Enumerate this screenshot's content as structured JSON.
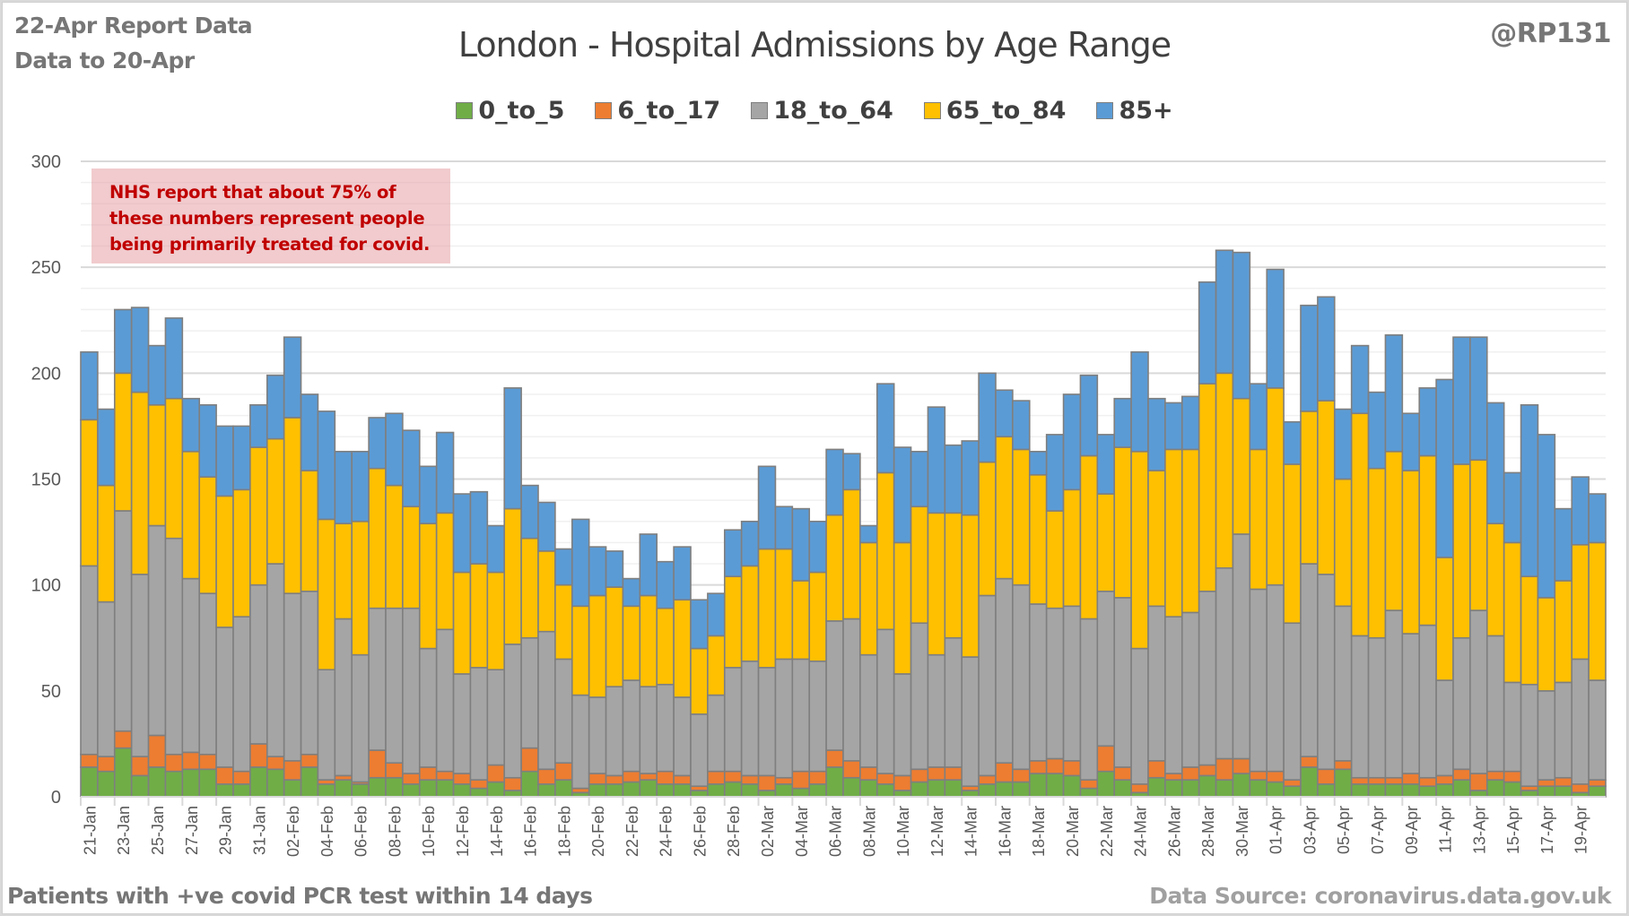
{
  "header": {
    "report_line1": "22-Apr Report Data",
    "report_line2": "Data to 20-Apr",
    "handle": "@RP131"
  },
  "note": "NHS report that about 75% of these numbers represent people being primarily treated for covid.",
  "footer": {
    "left": "Patients with  +ve covid PCR test within 14 days",
    "right": "Data Source: coronavirus.data.gov.uk"
  },
  "chart_data": {
    "type": "bar",
    "stacked": true,
    "title": "London - Hospital Admissions by Age Range",
    "xlabel": "",
    "ylabel": "",
    "ylim": [
      0,
      300
    ],
    "yticks": [
      0,
      50,
      100,
      150,
      200,
      250,
      300
    ],
    "grid": true,
    "legend_position": "top-center",
    "colors": {
      "0_to_5": "#70ad47",
      "6_to_17": "#ed7d31",
      "18_to_64": "#a5a5a5",
      "65_to_84": "#ffc000",
      "85+": "#5b9bd5"
    },
    "categories": [
      "21-Jan",
      "22-Jan",
      "23-Jan",
      "24-Jan",
      "25-Jan",
      "26-Jan",
      "27-Jan",
      "28-Jan",
      "29-Jan",
      "30-Jan",
      "31-Jan",
      "01-Feb",
      "02-Feb",
      "03-Feb",
      "04-Feb",
      "05-Feb",
      "06-Feb",
      "07-Feb",
      "08-Feb",
      "09-Feb",
      "10-Feb",
      "11-Feb",
      "12-Feb",
      "13-Feb",
      "14-Feb",
      "15-Feb",
      "16-Feb",
      "17-Feb",
      "18-Feb",
      "19-Feb",
      "20-Feb",
      "21-Feb",
      "22-Feb",
      "23-Feb",
      "24-Feb",
      "25-Feb",
      "26-Feb",
      "27-Feb",
      "28-Feb",
      "01-Mar",
      "02-Mar",
      "03-Mar",
      "04-Mar",
      "05-Mar",
      "06-Mar",
      "07-Mar",
      "08-Mar",
      "09-Mar",
      "10-Mar",
      "11-Mar",
      "12-Mar",
      "13-Mar",
      "14-Mar",
      "15-Mar",
      "16-Mar",
      "17-Mar",
      "18-Mar",
      "19-Mar",
      "20-Mar",
      "21-Mar",
      "22-Mar",
      "23-Mar",
      "24-Mar",
      "25-Mar",
      "26-Mar",
      "27-Mar",
      "28-Mar",
      "29-Mar",
      "30-Mar",
      "31-Mar",
      "01-Apr",
      "02-Apr",
      "03-Apr",
      "04-Apr",
      "05-Apr",
      "06-Apr",
      "07-Apr",
      "08-Apr",
      "09-Apr",
      "10-Apr",
      "11-Apr",
      "12-Apr",
      "13-Apr",
      "14-Apr",
      "15-Apr",
      "16-Apr",
      "17-Apr",
      "18-Apr",
      "19-Apr",
      "20-Apr"
    ],
    "tick_labels": [
      "21-Jan",
      "23-Jan",
      "25-Jan",
      "27-Jan",
      "29-Jan",
      "31-Jan",
      "02-Feb",
      "04-Feb",
      "06-Feb",
      "08-Feb",
      "10-Feb",
      "12-Feb",
      "14-Feb",
      "16-Feb",
      "18-Feb",
      "20-Feb",
      "22-Feb",
      "24-Feb",
      "26-Feb",
      "28-Feb",
      "02-Mar",
      "04-Mar",
      "06-Mar",
      "08-Mar",
      "10-Mar",
      "12-Mar",
      "14-Mar",
      "16-Mar",
      "18-Mar",
      "20-Mar",
      "22-Mar",
      "24-Mar",
      "26-Mar",
      "28-Mar",
      "30-Mar",
      "01-Apr",
      "03-Apr",
      "05-Apr",
      "07-Apr",
      "09-Apr",
      "11-Apr",
      "13-Apr",
      "15-Apr",
      "17-Apr",
      "19-Apr"
    ],
    "series": [
      {
        "name": "0_to_5",
        "values": [
          14,
          12,
          23,
          10,
          14,
          12,
          13,
          13,
          6,
          6,
          14,
          13,
          8,
          14,
          6,
          8,
          6,
          9,
          9,
          6,
          8,
          8,
          6,
          4,
          7,
          3,
          12,
          6,
          8,
          2,
          6,
          6,
          7,
          8,
          6,
          6,
          3,
          6,
          7,
          6,
          3,
          6,
          4,
          6,
          14,
          9,
          8,
          6,
          3,
          7,
          8,
          8,
          3,
          6,
          7,
          7,
          11,
          11,
          10,
          4,
          12,
          8,
          2,
          9,
          8,
          8,
          10,
          8,
          11,
          8,
          7,
          5,
          14,
          6,
          13,
          6,
          6,
          6,
          6,
          5,
          6,
          8,
          3,
          8,
          7,
          3,
          5,
          5,
          2,
          5
        ]
      },
      {
        "name": "6_to_17",
        "values": [
          6,
          7,
          8,
          9,
          15,
          8,
          8,
          7,
          8,
          6,
          11,
          6,
          9,
          6,
          2,
          2,
          1,
          13,
          7,
          5,
          6,
          4,
          5,
          4,
          8,
          6,
          11,
          7,
          8,
          2,
          5,
          4,
          5,
          3,
          6,
          4,
          2,
          6,
          5,
          4,
          7,
          3,
          8,
          6,
          8,
          8,
          6,
          5,
          7,
          6,
          6,
          6,
          2,
          4,
          9,
          6,
          6,
          7,
          7,
          4,
          12,
          6,
          4,
          8,
          3,
          6,
          5,
          10,
          7,
          4,
          5,
          3,
          5,
          7,
          4,
          3,
          3,
          3,
          5,
          4,
          4,
          5,
          8,
          4,
          5,
          2,
          3,
          4,
          4,
          3
        ]
      },
      {
        "name": "18_to_64",
        "values": [
          89,
          73,
          104,
          86,
          99,
          102,
          82,
          76,
          66,
          73,
          75,
          91,
          79,
          77,
          52,
          74,
          60,
          67,
          73,
          78,
          56,
          67,
          47,
          53,
          45,
          63,
          52,
          65,
          49,
          44,
          36,
          42,
          43,
          41,
          41,
          37,
          34,
          36,
          49,
          54,
          51,
          56,
          53,
          52,
          61,
          67,
          53,
          68,
          48,
          69,
          53,
          61,
          61,
          85,
          87,
          87,
          74,
          71,
          73,
          76,
          73,
          80,
          64,
          73,
          74,
          73,
          82,
          90,
          106,
          86,
          88,
          74,
          91,
          92,
          73,
          67,
          66,
          79,
          66,
          72,
          45,
          62,
          77,
          64,
          42,
          48,
          42,
          45,
          59,
          47
        ]
      },
      {
        "name": "65_to_84",
        "values": [
          69,
          55,
          65,
          86,
          57,
          66,
          60,
          55,
          62,
          60,
          65,
          59,
          83,
          57,
          71,
          45,
          63,
          66,
          58,
          48,
          59,
          55,
          48,
          49,
          46,
          64,
          47,
          38,
          35,
          42,
          48,
          47,
          35,
          43,
          36,
          46,
          31,
          28,
          43,
          45,
          56,
          52,
          37,
          42,
          50,
          61,
          53,
          74,
          62,
          55,
          67,
          59,
          67,
          63,
          67,
          64,
          61,
          46,
          55,
          77,
          46,
          71,
          93,
          64,
          79,
          77,
          98,
          92,
          64,
          66,
          93,
          75,
          72,
          82,
          60,
          105,
          80,
          75,
          77,
          80,
          58,
          82,
          71,
          53,
          66,
          51,
          44,
          48,
          54,
          65
        ]
      },
      {
        "name": "85+",
        "values": [
          32,
          36,
          30,
          40,
          28,
          38,
          25,
          34,
          33,
          30,
          20,
          30,
          38,
          36,
          51,
          34,
          33,
          24,
          34,
          36,
          27,
          38,
          37,
          34,
          22,
          57,
          25,
          23,
          17,
          41,
          23,
          17,
          13,
          29,
          22,
          25,
          23,
          20,
          22,
          21,
          39,
          20,
          34,
          24,
          31,
          17,
          8,
          42,
          45,
          26,
          50,
          32,
          35,
          42,
          22,
          23,
          11,
          36,
          45,
          38,
          28,
          23,
          47,
          34,
          22,
          25,
          48,
          58,
          69,
          31,
          56,
          20,
          50,
          49,
          33,
          32,
          36,
          55,
          27,
          32,
          84,
          60,
          58,
          57,
          33,
          81,
          77,
          34,
          32,
          23
        ]
      }
    ]
  }
}
